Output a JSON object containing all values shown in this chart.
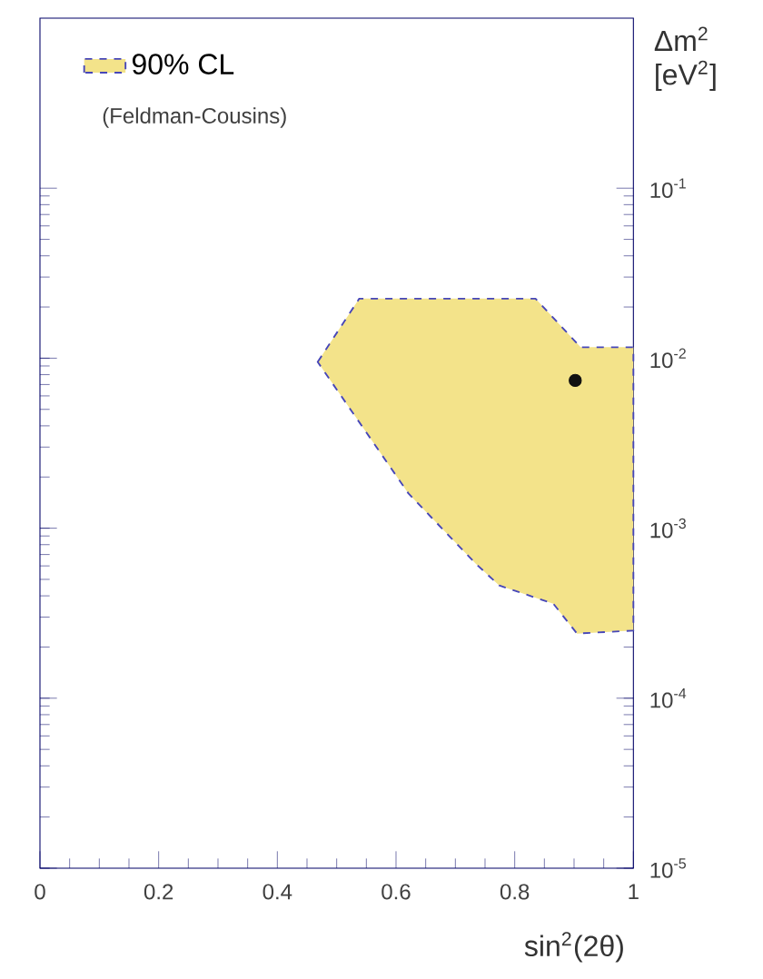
{
  "chart_data": {
    "type": "area",
    "xlabel": "sin$^{2}$(2θ)",
    "ylabel": "Δm$^{2}$ [eV$^{2}$]",
    "annotations": [
      "(Feldman-Cousins)"
    ],
    "log": "y",
    "xlim": [
      0,
      1
    ],
    "ylim": [
      1e-05,
      1
    ],
    "xticks": [
      0,
      0.2,
      0.4,
      0.6,
      0.8,
      1
    ],
    "yticks": [
      {
        "value": 1e-05,
        "label": "10$^{-5}$"
      },
      {
        "value": 0.0001,
        "label": "10$^{-4}$"
      },
      {
        "value": 0.001,
        "label": "10$^{-3}$"
      },
      {
        "value": 0.01,
        "label": "10$^{-2}$"
      },
      {
        "value": 0.1,
        "label": "10$^{-1}$"
      }
    ],
    "legend": "top left",
    "series": [
      {
        "name": "90% CL",
        "color": "#f3e38a",
        "line_style": "dashed",
        "x": [
          0.468,
          0.538,
          0.835,
          0.911,
          1.0,
          1.0,
          0.905,
          0.865,
          0.774,
          0.734,
          0.621,
          0.468
        ],
        "values": [
          0.0095,
          0.0224,
          0.0224,
          0.0116,
          0.0116,
          0.00025,
          0.00024,
          0.00036,
          0.00046,
          0.00062,
          0.0016,
          0.0095
        ]
      },
      {
        "type": "scatter",
        "color": "#111111",
        "marker": "circle",
        "x": [
          0.902
        ],
        "values": [
          0.0074
        ]
      }
    ]
  }
}
